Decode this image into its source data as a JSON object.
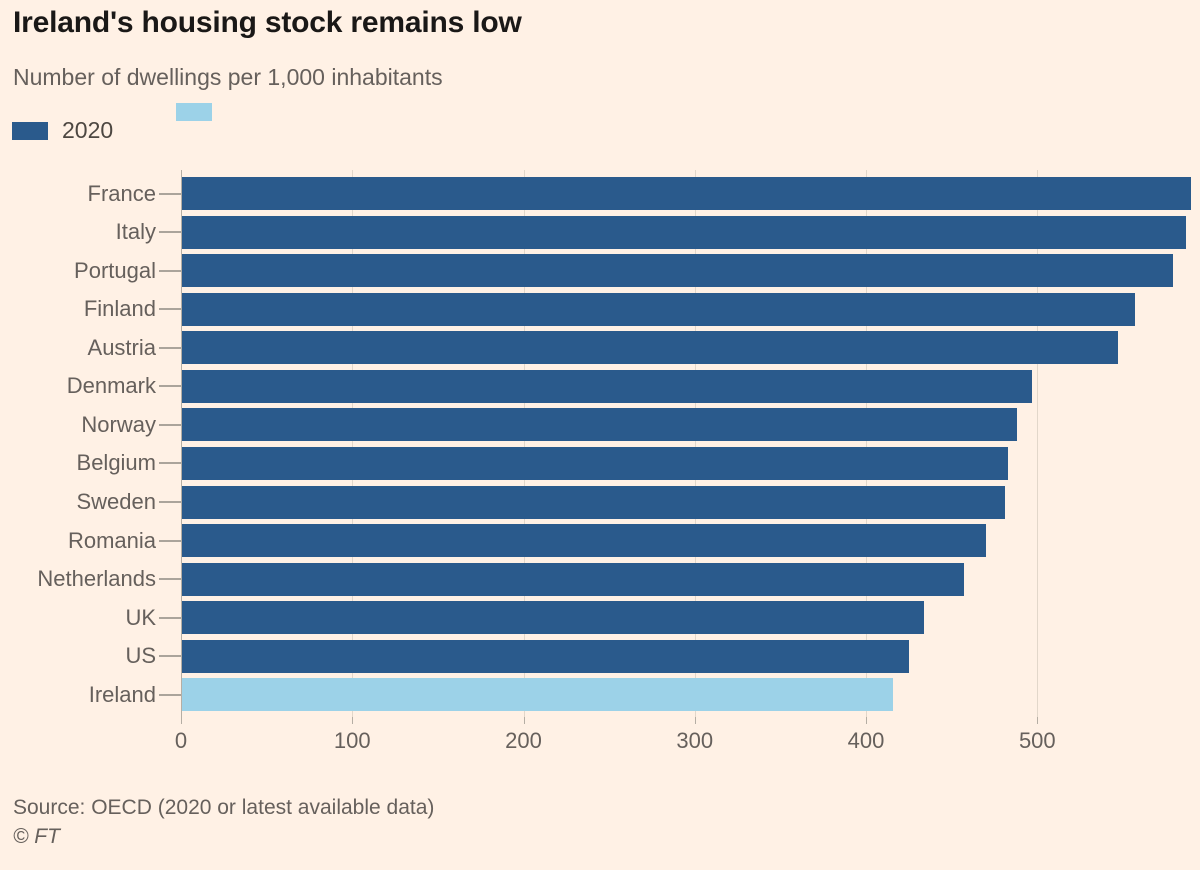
{
  "title": "Ireland's housing stock remains low",
  "subtitle": "Number of dwellings per 1,000 inhabitants",
  "legend": {
    "primary_label": "2020",
    "primary_color": "#2A5A8C",
    "highlight_label": "",
    "highlight_color": "#9CD2E8"
  },
  "source_line": "Source: OECD (2020 or latest available data)",
  "copyright": "© FT",
  "colors": {
    "background": "#FFF1E5",
    "bar": "#2A5A8C",
    "highlight_bar": "#9CD2E8",
    "text_dark": "#1A1817",
    "text_gray": "#66605C",
    "legend_text": "#4D4741",
    "axis": "#B5AEA4",
    "grid": "#E2D7CA",
    "label_dash": "#ABA49B"
  },
  "chart_data": {
    "type": "bar",
    "orientation": "horizontal",
    "title": "Ireland's housing stock remains low",
    "subtitle": "Number of dwellings per 1,000 inhabitants",
    "legend_entries": [
      {
        "label": "2020",
        "color": "#2A5A8C"
      },
      {
        "label": "",
        "color": "#9CD2E8"
      }
    ],
    "legend_position": "top-left",
    "categories": [
      "France",
      "Italy",
      "Portugal",
      "Finland",
      "Austria",
      "Denmark",
      "Norway",
      "Belgium",
      "Sweden",
      "Romania",
      "Netherlands",
      "UK",
      "US",
      "Ireland"
    ],
    "values": [
      590,
      587,
      579,
      557,
      547,
      497,
      488,
      483,
      481,
      470,
      457,
      434,
      425,
      416
    ],
    "highlight_category": "Ireland",
    "xlabel": "",
    "ylabel": "",
    "xlim": [
      0,
      595
    ],
    "xticks": [
      0,
      100,
      200,
      300,
      400,
      500
    ],
    "grid": "vertical",
    "source": "Source: OECD (2020 or latest available data)"
  }
}
